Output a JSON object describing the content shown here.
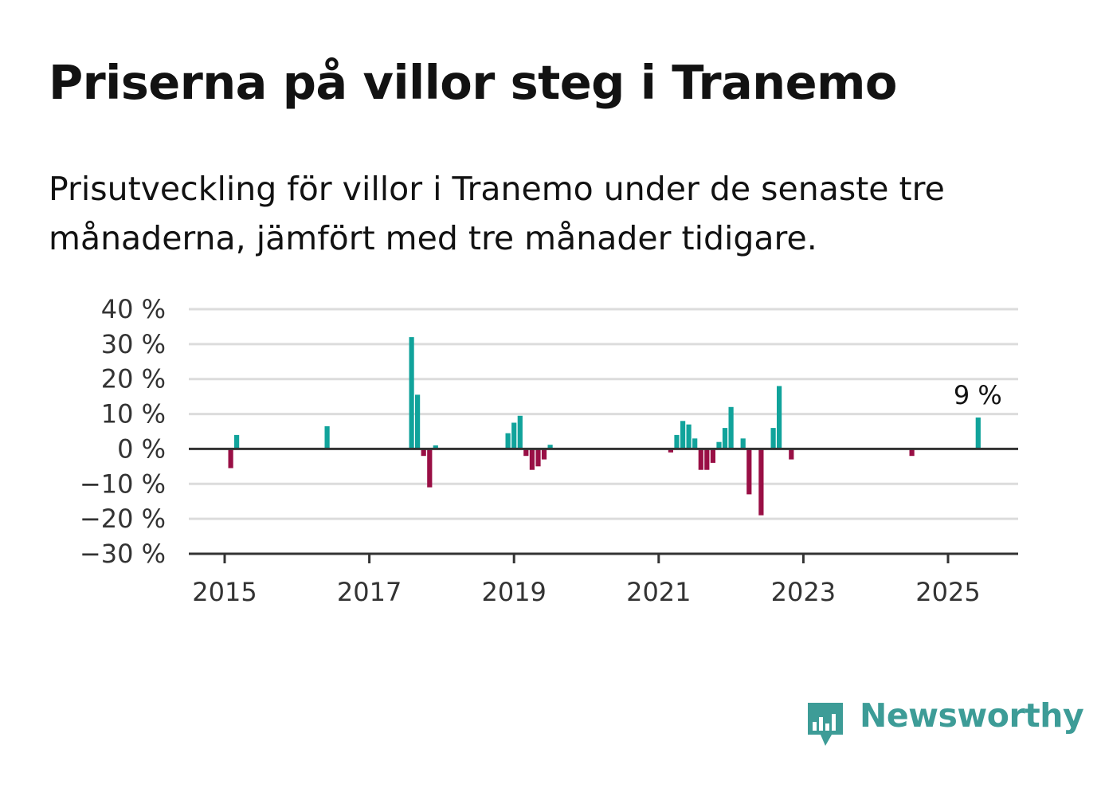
{
  "title": "Priserna på villor steg i Tranemo",
  "subtitle": "Prisutveckling för villor i Tranemo under de senaste tre månaderna, jämfört med tre månader tidigare.",
  "brand": {
    "name": "Newsworthy",
    "color": "#3d9c97",
    "icon": "newsworthy-bar-chart-icon"
  },
  "colors": {
    "positive": "#11a39b",
    "negative": "#990f45",
    "grid": "#dcdcdc",
    "axis": "#333333"
  },
  "chart_data": {
    "type": "bar",
    "title": "Priserna på villor steg i Tranemo",
    "subtitle": "Prisutveckling för villor i Tranemo under de senaste tre månaderna, jämfört med tre månader tidigare.",
    "xlabel": "",
    "ylabel": "",
    "x_ticks": [
      "2015",
      "2017",
      "2019",
      "2021",
      "2023",
      "2025"
    ],
    "y_ticks": [
      "40 %",
      "30 %",
      "20 %",
      "10 %",
      "0 %",
      "−10 %",
      "−20 %",
      "−30 %"
    ],
    "ylim": [
      -30,
      40
    ],
    "xlim": [
      "2014-09",
      "2025-12"
    ],
    "grid": true,
    "unit": "%",
    "annotation": {
      "text": "9 %",
      "date": "2025-06",
      "value": 9
    },
    "series": [
      {
        "points": [
          {
            "date": "2015-02",
            "value": -5.5
          },
          {
            "date": "2015-03",
            "value": 4
          },
          {
            "date": "2016-06",
            "value": 6.5
          },
          {
            "date": "2017-08",
            "value": 32
          },
          {
            "date": "2017-09",
            "value": 15.5
          },
          {
            "date": "2017-10",
            "value": -2
          },
          {
            "date": "2017-11",
            "value": -11
          },
          {
            "date": "2017-12",
            "value": 1
          },
          {
            "date": "2018-12",
            "value": 4.5
          },
          {
            "date": "2019-01",
            "value": 7.5
          },
          {
            "date": "2019-02",
            "value": 9.5
          },
          {
            "date": "2019-03",
            "value": -2
          },
          {
            "date": "2019-04",
            "value": -6
          },
          {
            "date": "2019-05",
            "value": -5
          },
          {
            "date": "2019-06",
            "value": -3
          },
          {
            "date": "2019-07",
            "value": 1.2
          },
          {
            "date": "2021-03",
            "value": -1
          },
          {
            "date": "2021-04",
            "value": 4
          },
          {
            "date": "2021-05",
            "value": 8
          },
          {
            "date": "2021-06",
            "value": 7
          },
          {
            "date": "2021-07",
            "value": 3
          },
          {
            "date": "2021-08",
            "value": -6
          },
          {
            "date": "2021-09",
            "value": -6
          },
          {
            "date": "2021-10",
            "value": -4
          },
          {
            "date": "2021-11",
            "value": 2
          },
          {
            "date": "2021-12",
            "value": 6
          },
          {
            "date": "2022-01",
            "value": 12
          },
          {
            "date": "2022-03",
            "value": 3
          },
          {
            "date": "2022-04",
            "value": -13
          },
          {
            "date": "2022-06",
            "value": -19
          },
          {
            "date": "2022-08",
            "value": 6
          },
          {
            "date": "2022-09",
            "value": 18
          },
          {
            "date": "2022-11",
            "value": -3
          },
          {
            "date": "2024-07",
            "value": -2
          },
          {
            "date": "2025-06",
            "value": 9
          }
        ]
      }
    ]
  }
}
